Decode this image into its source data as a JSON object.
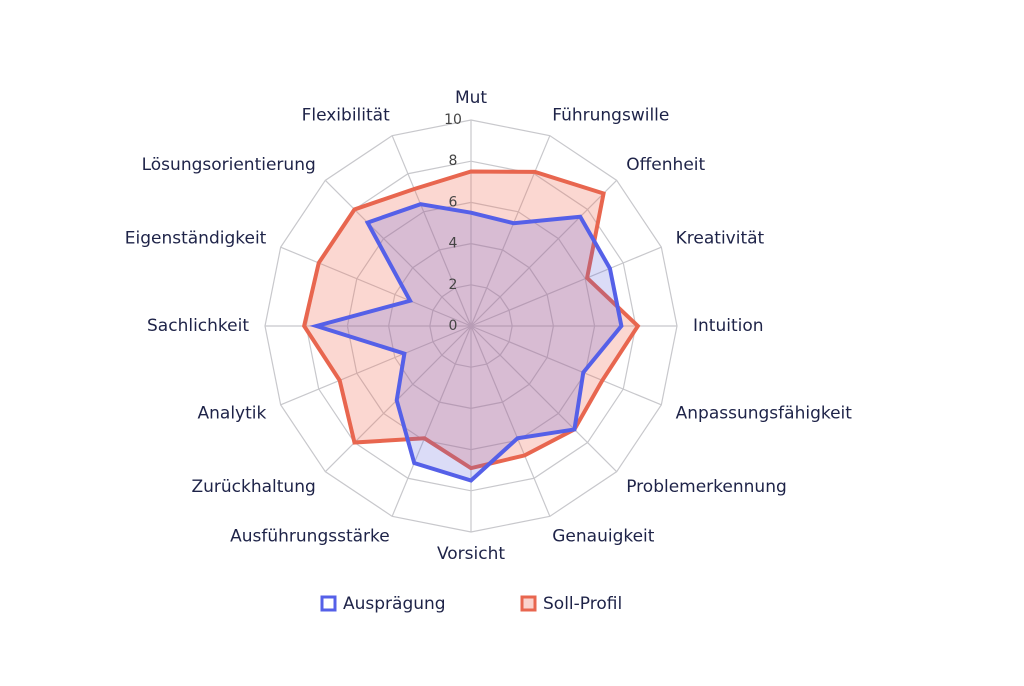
{
  "chart_data": {
    "type": "radar",
    "categories": [
      "Mut",
      "Führungswille",
      "Offenheit",
      "Kreativität",
      "Intuition",
      "Anpassungsfähigkeit",
      "Problemerkennung",
      "Genauigkeit",
      "Vorsicht",
      "Ausführungsstärke",
      "Zurückhaltung",
      "Analytik",
      "Sachlichkeit",
      "Eigenständigkeit",
      "Lösungsorientierung",
      "Flexibilität"
    ],
    "series": [
      {
        "name": "Ausprägung",
        "color": "#5560e8",
        "values": [
          5.5,
          5.4,
          7.5,
          7.3,
          7.3,
          5.9,
          7.1,
          5.9,
          7.5,
          7.2,
          5.1,
          3.5,
          7.5,
          3.2,
          7.1,
          6.4
        ]
      },
      {
        "name": "Soll-Profil",
        "color": "#e8664f",
        "values": [
          7.5,
          8.1,
          9.1,
          6.1,
          8.1,
          6.9,
          7.1,
          6.8,
          6.9,
          5.9,
          8.0,
          6.9,
          8.1,
          8.0,
          8.0,
          7.2
        ]
      }
    ],
    "rlim": [
      0,
      10
    ],
    "rticks": [
      0,
      2,
      4,
      6,
      8,
      10
    ]
  }
}
